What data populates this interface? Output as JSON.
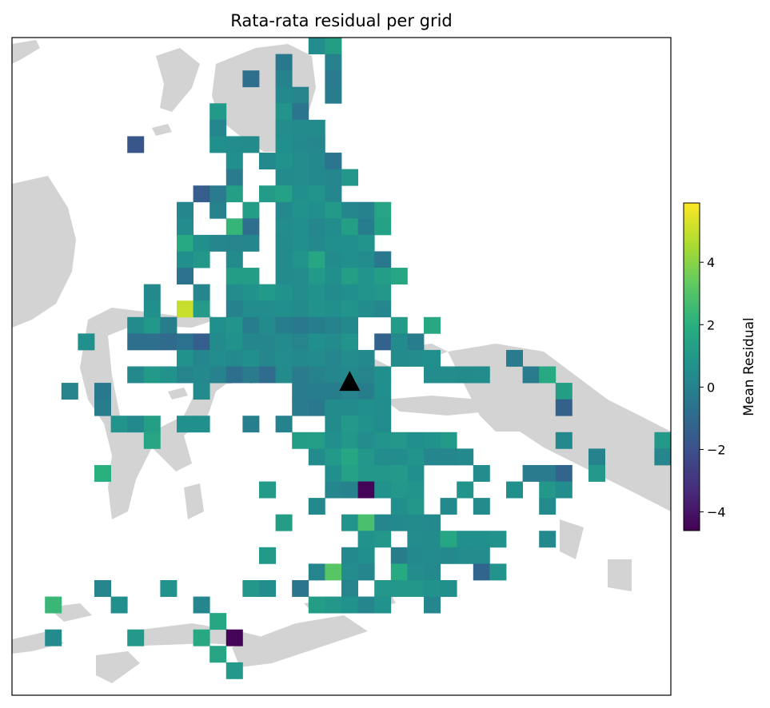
{
  "chart_data": {
    "type": "heatmap",
    "title": "Rata-rata residual per grid",
    "colorbar": {
      "label": "Mean Residual",
      "vmin": -4.6,
      "vmax": 5.9,
      "ticks": [
        -4,
        -2,
        0,
        2,
        4
      ],
      "tick_labels": [
        "−4",
        "−2",
        "0",
        "2",
        "4"
      ],
      "colormap": "viridis"
    },
    "grid": {
      "cols": 40,
      "rows": 40
    },
    "marker": {
      "symbol": "triangle",
      "col": 20,
      "row": 20.5,
      "color": "#000000"
    },
    "cells": [
      [
        18,
        0,
        0.5
      ],
      [
        19,
        0,
        1.2
      ],
      [
        19,
        1,
        0.0
      ],
      [
        16,
        1,
        -0.4
      ],
      [
        14,
        2,
        -0.8
      ],
      [
        16,
        2,
        0.0
      ],
      [
        19,
        2,
        -0.3
      ],
      [
        16,
        3,
        0.3
      ],
      [
        17,
        3,
        0.1
      ],
      [
        19,
        3,
        -0.2
      ],
      [
        16,
        4,
        0.8
      ],
      [
        17,
        4,
        -0.5
      ],
      [
        12,
        4,
        1.0
      ],
      [
        12,
        5,
        0.2
      ],
      [
        16,
        5,
        0.5
      ],
      [
        17,
        5,
        0.4
      ],
      [
        18,
        5,
        0.4
      ],
      [
        7,
        6,
        -1.8
      ],
      [
        12,
        6,
        0.6
      ],
      [
        13,
        6,
        0.5
      ],
      [
        14,
        6,
        0.4
      ],
      [
        16,
        6,
        0.6
      ],
      [
        17,
        6,
        0.3
      ],
      [
        18,
        6,
        0.2
      ],
      [
        13,
        7,
        0.6
      ],
      [
        15,
        7,
        0.3
      ],
      [
        16,
        7,
        0.7
      ],
      [
        17,
        7,
        0.5
      ],
      [
        18,
        7,
        0.3
      ],
      [
        19,
        7,
        -0.5
      ],
      [
        13,
        8,
        -0.3
      ],
      [
        16,
        8,
        0.4
      ],
      [
        17,
        8,
        0.5
      ],
      [
        18,
        8,
        0.3
      ],
      [
        19,
        8,
        0.2
      ],
      [
        20,
        8,
        0.9
      ],
      [
        11,
        9,
        -1.5
      ],
      [
        12,
        9,
        -0.3
      ],
      [
        13,
        9,
        1.3
      ],
      [
        15,
        9,
        1.1
      ],
      [
        16,
        9,
        1.4
      ],
      [
        17,
        9,
        0.6
      ],
      [
        18,
        9,
        0.8
      ],
      [
        19,
        9,
        0.2
      ],
      [
        10,
        10,
        0.2
      ],
      [
        12,
        10,
        0.0
      ],
      [
        14,
        10,
        1.2
      ],
      [
        16,
        10,
        0.3
      ],
      [
        17,
        10,
        0.7
      ],
      [
        18,
        10,
        0.6
      ],
      [
        19,
        10,
        1.0
      ],
      [
        20,
        10,
        0.2
      ],
      [
        21,
        10,
        0.0
      ],
      [
        22,
        10,
        1.5
      ],
      [
        10,
        11,
        0.5
      ],
      [
        13,
        11,
        2.3
      ],
      [
        14,
        11,
        -0.8
      ],
      [
        16,
        11,
        0.5
      ],
      [
        17,
        11,
        0.6
      ],
      [
        18,
        11,
        0.2
      ],
      [
        19,
        11,
        0.5
      ],
      [
        20,
        11,
        1.3
      ],
      [
        21,
        11,
        -0.2
      ],
      [
        22,
        11,
        1.4
      ],
      [
        10,
        12,
        1.8
      ],
      [
        11,
        12,
        0.6
      ],
      [
        12,
        12,
        0.2
      ],
      [
        13,
        12,
        0.1
      ],
      [
        14,
        12,
        0.2
      ],
      [
        16,
        12,
        0.4
      ],
      [
        17,
        12,
        0.6
      ],
      [
        18,
        12,
        0.3
      ],
      [
        19,
        12,
        0.6
      ],
      [
        20,
        12,
        0.6
      ],
      [
        21,
        12,
        0.8
      ],
      [
        10,
        13,
        0.6
      ],
      [
        11,
        13,
        0.9
      ],
      [
        13,
        13,
        0.4
      ],
      [
        16,
        13,
        0.4
      ],
      [
        17,
        13,
        0.8
      ],
      [
        18,
        13,
        1.6
      ],
      [
        19,
        13,
        0.4
      ],
      [
        20,
        13,
        0.6
      ],
      [
        21,
        13,
        0.5
      ],
      [
        22,
        13,
        -0.4
      ],
      [
        10,
        14,
        -0.6
      ],
      [
        13,
        14,
        1.2
      ],
      [
        14,
        14,
        1.2
      ],
      [
        16,
        14,
        0.4
      ],
      [
        17,
        14,
        0.5
      ],
      [
        18,
        14,
        1.0
      ],
      [
        19,
        14,
        0.6
      ],
      [
        20,
        14,
        1.3
      ],
      [
        21,
        14,
        0.8
      ],
      [
        22,
        14,
        1.2
      ],
      [
        23,
        14,
        1.6
      ],
      [
        8,
        15,
        0.3
      ],
      [
        11,
        15,
        0.2
      ],
      [
        13,
        15,
        0.5
      ],
      [
        14,
        15,
        0.7
      ],
      [
        15,
        15,
        1.0
      ],
      [
        16,
        15,
        0.7
      ],
      [
        17,
        15,
        0.5
      ],
      [
        18,
        15,
        0.7
      ],
      [
        19,
        15,
        0.4
      ],
      [
        20,
        15,
        0.6
      ],
      [
        21,
        15,
        0.8
      ],
      [
        22,
        15,
        0.9
      ],
      [
        8,
        16,
        0.6
      ],
      [
        10,
        16,
        5.0
      ],
      [
        11,
        16,
        1.1
      ],
      [
        13,
        16,
        0.0
      ],
      [
        14,
        16,
        0.5
      ],
      [
        15,
        16,
        0.5
      ],
      [
        16,
        16,
        0.6
      ],
      [
        17,
        16,
        0.4
      ],
      [
        18,
        16,
        0.7
      ],
      [
        19,
        16,
        0.6
      ],
      [
        20,
        16,
        0.8
      ],
      [
        21,
        16,
        0.5
      ],
      [
        22,
        16,
        0.2
      ],
      [
        7,
        17,
        0.4
      ],
      [
        8,
        17,
        0.9
      ],
      [
        9,
        17,
        -0.2
      ],
      [
        12,
        17,
        0.6
      ],
      [
        13,
        17,
        0.8
      ],
      [
        14,
        17,
        -0.2
      ],
      [
        15,
        17,
        0.4
      ],
      [
        16,
        17,
        -0.2
      ],
      [
        17,
        17,
        -0.4
      ],
      [
        18,
        17,
        -0.2
      ],
      [
        19,
        17,
        0.0
      ],
      [
        20,
        17,
        0.3
      ],
      [
        23,
        17,
        1.1
      ],
      [
        25,
        17,
        1.7
      ],
      [
        4,
        18,
        0.6
      ],
      [
        7,
        18,
        -0.8
      ],
      [
        8,
        18,
        -0.8
      ],
      [
        9,
        18,
        -1.0
      ],
      [
        10,
        18,
        -0.7
      ],
      [
        11,
        18,
        -1.5
      ],
      [
        12,
        18,
        0.4
      ],
      [
        13,
        18,
        0.7
      ],
      [
        14,
        18,
        0.2
      ],
      [
        15,
        18,
        0.2
      ],
      [
        16,
        18,
        0.4
      ],
      [
        17,
        18,
        0.1
      ],
      [
        18,
        18,
        0.6
      ],
      [
        19,
        18,
        0.4
      ],
      [
        20,
        18,
        0.8
      ],
      [
        22,
        18,
        -1.3
      ],
      [
        23,
        18,
        0.4
      ],
      [
        24,
        18,
        -0.2
      ],
      [
        10,
        19,
        0.7
      ],
      [
        11,
        19,
        0.2
      ],
      [
        12,
        19,
        0.5
      ],
      [
        13,
        19,
        0.3
      ],
      [
        14,
        19,
        0.6
      ],
      [
        15,
        19,
        0.2
      ],
      [
        16,
        19,
        0.5
      ],
      [
        17,
        19,
        0.3
      ],
      [
        18,
        19,
        0.4
      ],
      [
        19,
        19,
        0.2
      ],
      [
        20,
        19,
        0.5
      ],
      [
        21,
        19,
        0.3
      ],
      [
        23,
        19,
        0.4
      ],
      [
        24,
        19,
        0.5
      ],
      [
        25,
        19,
        0.6
      ],
      [
        30,
        19,
        -0.3
      ],
      [
        7,
        20,
        0.3
      ],
      [
        8,
        20,
        1.0
      ],
      [
        9,
        20,
        0.7
      ],
      [
        10,
        20,
        0.1
      ],
      [
        11,
        20,
        0.3
      ],
      [
        12,
        20,
        0.0
      ],
      [
        13,
        20,
        -0.8
      ],
      [
        14,
        20,
        -0.3
      ],
      [
        15,
        20,
        -0.9
      ],
      [
        16,
        20,
        0.4
      ],
      [
        17,
        20,
        -0.3
      ],
      [
        18,
        20,
        0.0
      ],
      [
        19,
        20,
        0.2
      ],
      [
        20,
        20,
        0.3
      ],
      [
        21,
        20,
        0.1
      ],
      [
        22,
        20,
        0.6
      ],
      [
        25,
        20,
        0.5
      ],
      [
        26,
        20,
        0.5
      ],
      [
        27,
        20,
        0.4
      ],
      [
        28,
        20,
        0.5
      ],
      [
        31,
        20,
        -0.3
      ],
      [
        32,
        20,
        1.8
      ],
      [
        3,
        21,
        0.1
      ],
      [
        5,
        21,
        -0.4
      ],
      [
        11,
        21,
        0.4
      ],
      [
        17,
        21,
        -0.3
      ],
      [
        18,
        21,
        -0.2
      ],
      [
        19,
        21,
        -0.2
      ],
      [
        20,
        21,
        0.0
      ],
      [
        21,
        21,
        -0.2
      ],
      [
        22,
        21,
        0.6
      ],
      [
        33,
        21,
        1.2
      ],
      [
        5,
        22,
        -0.2
      ],
      [
        17,
        22,
        -0.3
      ],
      [
        18,
        22,
        -0.4
      ],
      [
        19,
        22,
        0.4
      ],
      [
        20,
        22,
        0.4
      ],
      [
        21,
        22,
        0.6
      ],
      [
        22,
        22,
        0.5
      ],
      [
        33,
        22,
        -1.4
      ],
      [
        6,
        23,
        0.8
      ],
      [
        7,
        23,
        0.3
      ],
      [
        8,
        23,
        1.3
      ],
      [
        10,
        23,
        0.6
      ],
      [
        11,
        23,
        0.6
      ],
      [
        14,
        23,
        -0.1
      ],
      [
        16,
        23,
        0.0
      ],
      [
        19,
        23,
        0.4
      ],
      [
        20,
        23,
        1.0
      ],
      [
        21,
        23,
        0.7
      ],
      [
        22,
        23,
        0.5
      ],
      [
        8,
        24,
        1.5
      ],
      [
        17,
        24,
        1.2
      ],
      [
        18,
        24,
        1.3
      ],
      [
        19,
        24,
        0.6
      ],
      [
        20,
        24,
        0.9
      ],
      [
        21,
        24,
        0.5
      ],
      [
        22,
        24,
        0.8
      ],
      [
        23,
        24,
        0.9
      ],
      [
        24,
        24,
        0.6
      ],
      [
        25,
        24,
        0.7
      ],
      [
        26,
        24,
        1.0
      ],
      [
        33,
        24,
        0.3
      ],
      [
        39,
        24,
        1.0
      ],
      [
        18,
        25,
        0.4
      ],
      [
        19,
        25,
        1.0
      ],
      [
        20,
        25,
        1.6
      ],
      [
        21,
        25,
        0.9
      ],
      [
        22,
        25,
        0.5
      ],
      [
        23,
        25,
        0.5
      ],
      [
        24,
        25,
        0.8
      ],
      [
        25,
        25,
        0.2
      ],
      [
        26,
        25,
        0.2
      ],
      [
        27,
        25,
        0.3
      ],
      [
        35,
        25,
        0.0
      ],
      [
        39,
        25,
        0.2
      ],
      [
        5,
        26,
        2.0
      ],
      [
        19,
        26,
        0.6
      ],
      [
        20,
        26,
        1.4
      ],
      [
        21,
        26,
        0.9
      ],
      [
        22,
        26,
        0.9
      ],
      [
        23,
        26,
        1.0
      ],
      [
        24,
        26,
        0.6
      ],
      [
        28,
        26,
        0.5
      ],
      [
        31,
        26,
        -0.3
      ],
      [
        32,
        26,
        -0.3
      ],
      [
        33,
        26,
        -1.2
      ],
      [
        35,
        26,
        1.0
      ],
      [
        15,
        27,
        1.1
      ],
      [
        19,
        27,
        0.2
      ],
      [
        20,
        27,
        0.0
      ],
      [
        21,
        27,
        -4.5
      ],
      [
        22,
        27,
        0.7
      ],
      [
        23,
        27,
        0.9
      ],
      [
        24,
        27,
        0.8
      ],
      [
        27,
        27,
        0.8
      ],
      [
        30,
        27,
        0.6
      ],
      [
        32,
        27,
        0.9
      ],
      [
        33,
        27,
        0.5
      ],
      [
        18,
        28,
        0.3
      ],
      [
        23,
        28,
        0.6
      ],
      [
        24,
        28,
        0.9
      ],
      [
        26,
        28,
        0.3
      ],
      [
        28,
        28,
        0.4
      ],
      [
        32,
        28,
        0.4
      ],
      [
        16,
        29,
        1.2
      ],
      [
        20,
        29,
        0.8
      ],
      [
        21,
        29,
        2.8
      ],
      [
        22,
        29,
        0.2
      ],
      [
        23,
        29,
        0.3
      ],
      [
        24,
        29,
        0.4
      ],
      [
        25,
        29,
        0.3
      ],
      [
        21,
        30,
        0.7
      ],
      [
        22,
        30,
        0.9
      ],
      [
        24,
        30,
        0.5
      ],
      [
        25,
        30,
        0.4
      ],
      [
        26,
        30,
        1.6
      ],
      [
        27,
        30,
        0.6
      ],
      [
        28,
        30,
        0.6
      ],
      [
        29,
        30,
        0.7
      ],
      [
        32,
        30,
        0.3
      ],
      [
        15,
        31,
        1.0
      ],
      [
        20,
        31,
        0.3
      ],
      [
        21,
        31,
        0.6
      ],
      [
        23,
        31,
        -0.2
      ],
      [
        24,
        31,
        0.3
      ],
      [
        25,
        31,
        0.4
      ],
      [
        26,
        31,
        0.3
      ],
      [
        27,
        31,
        0.5
      ],
      [
        28,
        31,
        0.5
      ],
      [
        18,
        32,
        0.1
      ],
      [
        19,
        32,
        3.1
      ],
      [
        20,
        32,
        0.5
      ],
      [
        21,
        32,
        0.2
      ],
      [
        23,
        32,
        1.8
      ],
      [
        24,
        32,
        0.5
      ],
      [
        25,
        32,
        0.3
      ],
      [
        28,
        32,
        -1.2
      ],
      [
        29,
        32,
        0.8
      ],
      [
        5,
        33,
        0.1
      ],
      [
        9,
        33,
        0.7
      ],
      [
        14,
        33,
        0.9
      ],
      [
        15,
        33,
        0.5
      ],
      [
        17,
        33,
        -0.5
      ],
      [
        20,
        33,
        0.1
      ],
      [
        22,
        33,
        0.9
      ],
      [
        23,
        33,
        0.9
      ],
      [
        24,
        33,
        0.9
      ],
      [
        25,
        33,
        0.7
      ],
      [
        26,
        33,
        0.6
      ],
      [
        2,
        34,
        2.4
      ],
      [
        6,
        34,
        0.6
      ],
      [
        11,
        34,
        0.2
      ],
      [
        18,
        34,
        1.2
      ],
      [
        19,
        34,
        0.9
      ],
      [
        20,
        34,
        0.7
      ],
      [
        21,
        34,
        0.2
      ],
      [
        22,
        34,
        0.7
      ],
      [
        25,
        34,
        0.2
      ],
      [
        12,
        35,
        1.6
      ],
      [
        2,
        36,
        0.4
      ],
      [
        7,
        36,
        1.0
      ],
      [
        11,
        36,
        1.7
      ],
      [
        13,
        36,
        -4.5
      ],
      [
        12,
        37,
        1.5
      ],
      [
        13,
        38,
        1.0
      ]
    ]
  }
}
